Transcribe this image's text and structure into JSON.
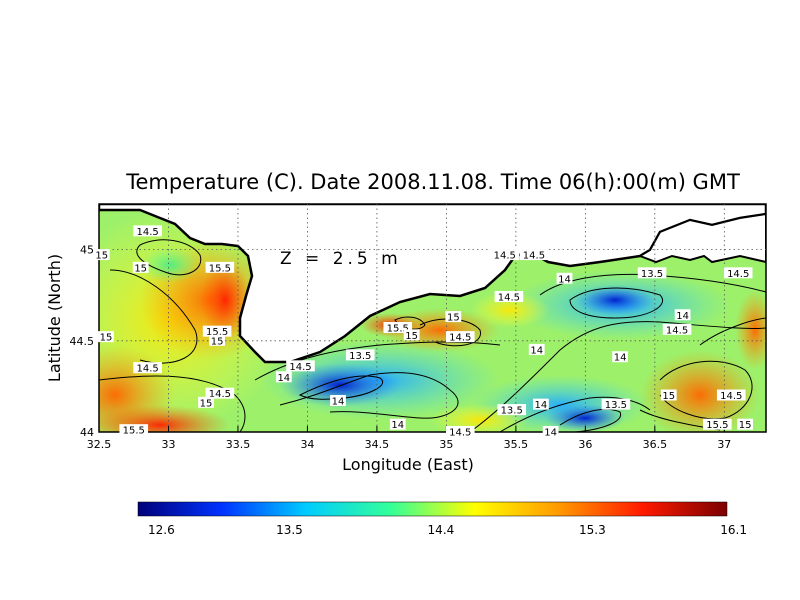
{
  "title": "Temperature (C). Date 2008.11.08. Time 06(h):00(m) GMT",
  "depth_label": "Z = 2.5 m",
  "axes": {
    "xlabel": "Longitude (East)",
    "ylabel": "Latitude (North)",
    "xticks": [
      "32.5",
      "33",
      "33.5",
      "34",
      "34.5",
      "35",
      "35.5",
      "36",
      "36.5",
      "37"
    ],
    "yticks": [
      "44",
      "44.5",
      "45"
    ],
    "xlim": [
      32.5,
      37.3
    ],
    "ylim": [
      44.0,
      45.25
    ],
    "grid": true
  },
  "colorbar": {
    "ticks": [
      "12.6",
      "13.5",
      "14.4",
      "15.3",
      "16.1"
    ],
    "min": 12.6,
    "max": 16.1,
    "colors": [
      "#00007a",
      "#0033ff",
      "#00ccff",
      "#33ff99",
      "#ffff00",
      "#ff9900",
      "#ff1a00",
      "#7a0000"
    ]
  },
  "contour_labels": [
    {
      "text": "14.5",
      "lon": 32.85,
      "lat": 45.1
    },
    {
      "text": "15",
      "lon": 32.52,
      "lat": 44.97
    },
    {
      "text": "15",
      "lon": 32.8,
      "lat": 44.9
    },
    {
      "text": "15.5",
      "lon": 33.37,
      "lat": 44.9
    },
    {
      "text": "15",
      "lon": 32.55,
      "lat": 44.52
    },
    {
      "text": "15.5",
      "lon": 33.35,
      "lat": 44.55
    },
    {
      "text": "15",
      "lon": 33.35,
      "lat": 44.5
    },
    {
      "text": "14.5",
      "lon": 32.85,
      "lat": 44.35
    },
    {
      "text": "14.5",
      "lon": 33.37,
      "lat": 44.21
    },
    {
      "text": "15",
      "lon": 33.27,
      "lat": 44.16
    },
    {
      "text": "15.5",
      "lon": 32.75,
      "lat": 44.01
    },
    {
      "text": "14",
      "lon": 33.83,
      "lat": 44.3
    },
    {
      "text": "14.5",
      "lon": 33.95,
      "lat": 44.36
    },
    {
      "text": "13.5",
      "lon": 34.38,
      "lat": 44.42
    },
    {
      "text": "15.5",
      "lon": 34.65,
      "lat": 44.57
    },
    {
      "text": "15",
      "lon": 34.75,
      "lat": 44.53
    },
    {
      "text": "14.5",
      "lon": 35.1,
      "lat": 44.52
    },
    {
      "text": "14",
      "lon": 34.22,
      "lat": 44.17
    },
    {
      "text": "14",
      "lon": 34.65,
      "lat": 44.04
    },
    {
      "text": "14.5",
      "lon": 35.1,
      "lat": 44.0
    },
    {
      "text": "14.5",
      "lon": 35.42,
      "lat": 44.97
    },
    {
      "text": "14.5",
      "lon": 35.63,
      "lat": 44.97
    },
    {
      "text": "14.5",
      "lon": 35.45,
      "lat": 44.74
    },
    {
      "text": "14",
      "lon": 35.85,
      "lat": 44.84
    },
    {
      "text": "13.5",
      "lon": 36.48,
      "lat": 44.87
    },
    {
      "text": "15",
      "lon": 35.05,
      "lat": 44.63
    },
    {
      "text": "14.5",
      "lon": 37.1,
      "lat": 44.87
    },
    {
      "text": "14",
      "lon": 36.7,
      "lat": 44.64
    },
    {
      "text": "14.5",
      "lon": 36.66,
      "lat": 44.56
    },
    {
      "text": "14",
      "lon": 35.65,
      "lat": 44.45
    },
    {
      "text": "14",
      "lon": 36.25,
      "lat": 44.41
    },
    {
      "text": "13.5",
      "lon": 35.47,
      "lat": 44.12
    },
    {
      "text": "14",
      "lon": 35.68,
      "lat": 44.15
    },
    {
      "text": "13.5",
      "lon": 36.22,
      "lat": 44.15
    },
    {
      "text": "15",
      "lon": 36.6,
      "lat": 44.2
    },
    {
      "text": "14.5",
      "lon": 37.05,
      "lat": 44.2
    },
    {
      "text": "15.5",
      "lon": 36.95,
      "lat": 44.04
    },
    {
      "text": "15",
      "lon": 37.15,
      "lat": 44.04
    },
    {
      "text": "14",
      "lon": 35.75,
      "lat": 44.0
    }
  ]
}
